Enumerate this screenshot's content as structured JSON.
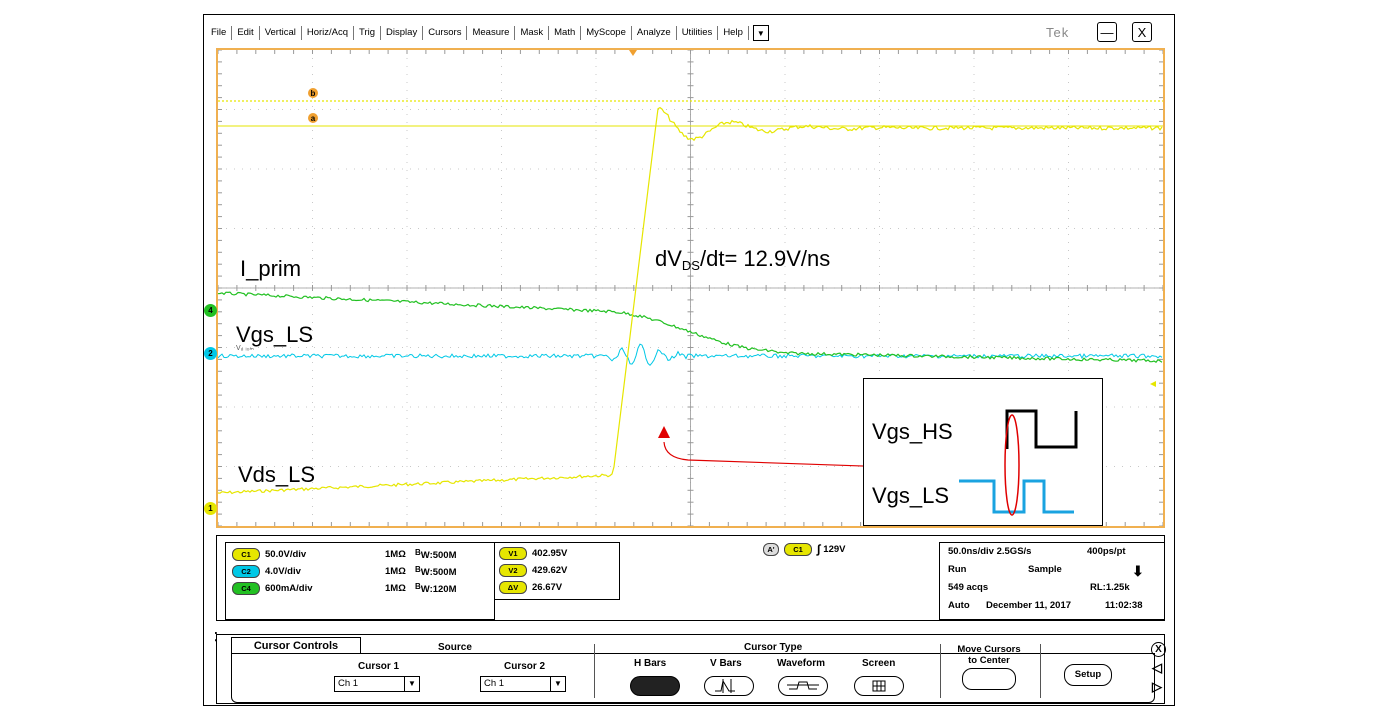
{
  "menu": {
    "items": [
      "File",
      "Edit",
      "Vertical",
      "Horiz/Acq",
      "Trig",
      "Display",
      "Cursors",
      "Measure",
      "Mask",
      "Math",
      "MyScope",
      "Analyze",
      "Utilities",
      "Help"
    ],
    "dropdown": "▼",
    "brand": "Tek",
    "minimize": "—",
    "close": "X"
  },
  "annotations": {
    "i_prim": "I_prim",
    "vgs_ls": "Vgs_LS",
    "vds_ls": "Vds_LS",
    "dv_pre": "dV",
    "dv_sub": "DS",
    "dv_post": "/dt= 12.9V/ns",
    "inset_hs": "Vgs_HS",
    "inset_ls": "Vgs_LS",
    "cursor_b": "b",
    "cursor_a": "a",
    "ch4_marker": "4",
    "ch2_marker": "2",
    "ch1_marker": "1",
    "ch2_small": "V₈ ᵢ₀ₘ"
  },
  "colors": {
    "ch1": "#e6e600",
    "ch2": "#00c8e6",
    "ch4": "#22c022",
    "grid": "#b0b0b0",
    "border": "#f0b050",
    "arrow": "#e00000",
    "inset_hs": "#000000",
    "inset_ls": "#1aa3e0"
  },
  "channels": [
    {
      "badge": "C1",
      "scale": "50.0V/div",
      "imp": "1MΩ",
      "bw": "W:500M",
      "color": "#e6e600"
    },
    {
      "badge": "C2",
      "scale": "4.0V/div",
      "imp": "1MΩ",
      "bw": "W:500M",
      "color": "#00c8e6"
    },
    {
      "badge": "C4",
      "scale": "600mA/div",
      "imp": "1MΩ",
      "bw": "W:120M",
      "color": "#22c022"
    }
  ],
  "bw_prefix": "B",
  "cursor_readout": [
    {
      "badge": "V1",
      "value": "402.95V"
    },
    {
      "badge": "V2",
      "value": "429.62V"
    },
    {
      "badge": "ΔV",
      "value": "26.67V"
    }
  ],
  "trigger": {
    "badge_a": "A'",
    "badge_c": "C1",
    "slope": "∫",
    "level": "129V"
  },
  "acq": {
    "timebase": "50.0ns/div",
    "rate": "2.5GS/s",
    "pts": "400ps/pt",
    "state": "Run",
    "mode": "Sample",
    "acqs": "549 acqs",
    "rl": "RL:1.25k",
    "trig_mode": "Auto",
    "date": "December 11, 2017",
    "time": "11:02:38"
  },
  "cursor_controls": {
    "tab": "Cursor Controls",
    "source": "Source",
    "cursor1": "Cursor 1",
    "cursor1_val": "Ch 1",
    "cursor2": "Cursor 2",
    "cursor2_val": "Ch 1",
    "type_title": "Cursor Type",
    "hbars": "H Bars",
    "vbars": "V Bars",
    "waveform": "Waveform",
    "screen": "Screen",
    "move_line1": "Move Cursors",
    "move_line2": "to Center",
    "setup": "Setup",
    "close": "X"
  }
}
